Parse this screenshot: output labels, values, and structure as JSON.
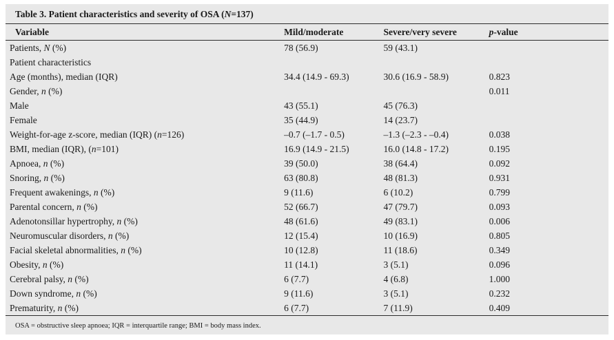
{
  "colors": {
    "panel-bg": "#e8e8e8",
    "rule-color": "#2b2b2b",
    "text-color": "#1a1a1a"
  },
  "table": {
    "title": "Table 3. Patient characteristics and severity of OSA (<i>N</i>=137)",
    "columns": [
      "Variable",
      "Mild/moderate",
      "Severe/very severe",
      "<i>p</i>-value"
    ],
    "rows": [
      {
        "label": "Patients, <i>N</i> (%)",
        "indent": 0,
        "mild": "78 (56.9)",
        "severe": "59 (43.1)",
        "p": ""
      },
      {
        "label": "Patient characteristics",
        "indent": 0,
        "mild": "",
        "severe": "",
        "p": ""
      },
      {
        "label": "Age (months), median (IQR)",
        "indent": 1,
        "mild": "34.4 (14.9 - 69.3)",
        "severe": "30.6 (16.9 - 58.9)",
        "p": "0.823"
      },
      {
        "label": "Gender, <i>n</i> (%)",
        "indent": 1,
        "mild": "",
        "severe": "",
        "p": "0.011"
      },
      {
        "label": "Male",
        "indent": 2,
        "mild": "43 (55.1)",
        "severe": "45 (76.3)",
        "p": ""
      },
      {
        "label": "Female",
        "indent": 2,
        "mild": "35 (44.9)",
        "severe": "14 (23.7)",
        "p": ""
      },
      {
        "label": "Weight-for-age z-score, median (IQR) (<i>n</i>=126)",
        "indent": 1,
        "mild": "–0.7 (–1.7 - 0.5)",
        "severe": "–1.3 (–2.3 - –0.4)",
        "p": "0.038"
      },
      {
        "label": "BMI, median (IQR), (<i>n</i>=101)",
        "indent": 1,
        "mild": "16.9 (14.9 - 21.5)",
        "severe": "16.0 (14.8 - 17.2)",
        "p": "0.195"
      },
      {
        "label": "Apnoea, <i>n</i> (%)",
        "indent": 1,
        "mild": "39 (50.0)",
        "severe": "38 (64.4)",
        "p": "0.092"
      },
      {
        "label": "Snoring, <i>n</i> (%)",
        "indent": 1,
        "mild": "63 (80.8)",
        "severe": "48 (81.3)",
        "p": "0.931"
      },
      {
        "label": "Frequent awakenings, <i>n</i> (%)",
        "indent": 1,
        "mild": "9 (11.6)",
        "severe": "6 (10.2)",
        "p": "0.799"
      },
      {
        "label": "Parental concern, <i>n</i> (%)",
        "indent": 1,
        "mild": "52 (66.7)",
        "severe": "47 (79.7)",
        "p": "0.093"
      },
      {
        "label": "Adenotonsillar hypertrophy, <i>n</i> (%)",
        "indent": 1,
        "mild": "48 (61.6)",
        "severe": "49 (83.1)",
        "p": "0.006"
      },
      {
        "label": "Neuromuscular disorders, <i>n</i> (%)",
        "indent": 1,
        "mild": "12 (15.4)",
        "severe": "10 (16.9)",
        "p": "0.805"
      },
      {
        "label": "Facial skeletal abnormalities, <i>n</i> (%)",
        "indent": 1,
        "mild": "10 (12.8)",
        "severe": "11 (18.6)",
        "p": "0.349"
      },
      {
        "label": "Obesity, <i>n</i> (%)",
        "indent": 1,
        "mild": "11 (14.1)",
        "severe": "3 (5.1)",
        "p": "0.096"
      },
      {
        "label": "Cerebral palsy, <i>n</i> (%)",
        "indent": 1,
        "mild": "6 (7.7)",
        "severe": "4 (6.8)",
        "p": "1.000"
      },
      {
        "label": "Down syndrome, <i>n</i> (%)",
        "indent": 1,
        "mild": "9 (11.6)",
        "severe": "3 (5.1)",
        "p": "0.232"
      },
      {
        "label": "Prematurity, <i>n</i> (%)",
        "indent": 1,
        "mild": "6 (7.7)",
        "severe": "7 (11.9)",
        "p": "0.409"
      }
    ],
    "footnote": "OSA = obstructive sleep apnoea; IQR = interquartile range; BMI = body mass index."
  }
}
